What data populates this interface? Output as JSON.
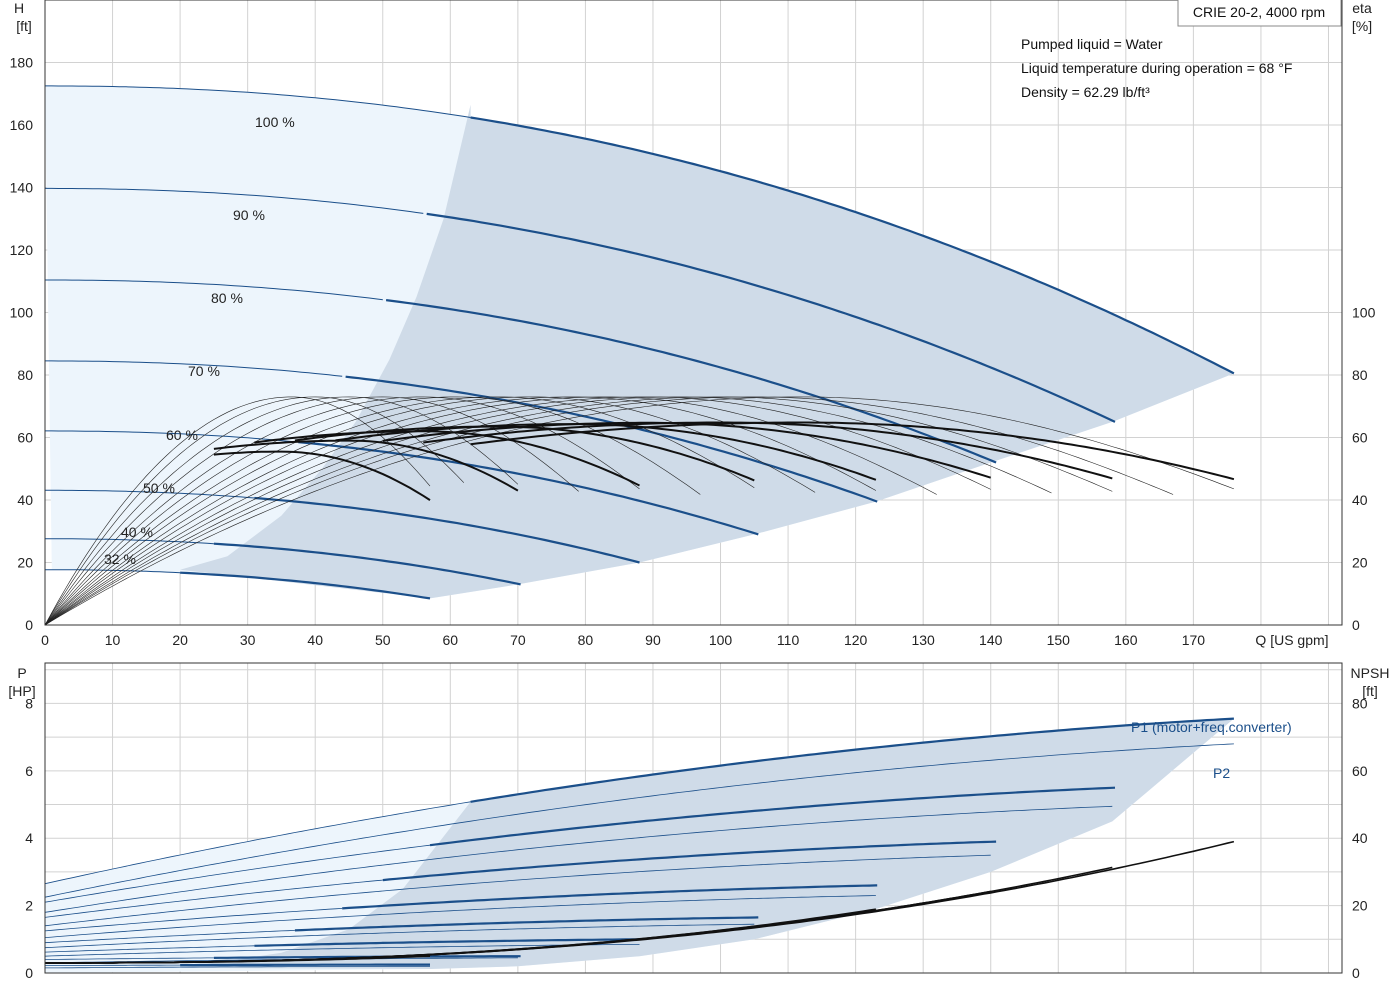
{
  "header": {
    "model": "CRIE 20-2, 4000 rpm",
    "liquid": "Pumped liquid = Water",
    "temperature": "Liquid temperature during operation = 68 °F",
    "density": "Density = 62.29 lb/ft³"
  },
  "colors": {
    "blue_curve": "#1b4f8a",
    "black_curve": "#111111",
    "op_area": "#cfdbe8",
    "light_area": "#edf5fc",
    "grid": "#d2d2d2"
  },
  "chart_data": [
    {
      "type": "line",
      "name": "head-efficiency",
      "left_axis": {
        "unit_line1": "H",
        "unit_line2": "[ft]",
        "ticks": [
          "0",
          "20",
          "40",
          "60",
          "80",
          "100",
          "120",
          "140",
          "160",
          "180"
        ],
        "ylim": [
          0,
          200
        ]
      },
      "right_axis": {
        "unit_line1": "eta",
        "unit_line2": "[%]",
        "ticks": [
          "0",
          "20",
          "40",
          "60",
          "80",
          "100"
        ],
        "ylim": [
          0,
          200
        ]
      },
      "x_axis": {
        "label": "Q [US gpm]",
        "ticks": [
          "0",
          "10",
          "20",
          "30",
          "40",
          "50",
          "60",
          "70",
          "80",
          "90",
          "100",
          "110",
          "120",
          "130",
          "140",
          "150",
          "160",
          "170"
        ],
        "xlim": [
          0,
          192
        ]
      },
      "head_curves": [
        {
          "speed": "100 %",
          "qmax": 176.0,
          "h0": 172.5,
          "k": 0.003,
          "n": 2.15
        },
        {
          "speed": "90 %",
          "qmax": 158.4,
          "h0": 139.7,
          "k": 0.003,
          "n": 2.15
        },
        {
          "speed": "80 %",
          "qmax": 140.8,
          "h0": 110.4,
          "k": 0.003,
          "n": 2.15
        },
        {
          "speed": "70 %",
          "qmax": 123.2,
          "h0": 84.5,
          "k": 0.003,
          "n": 2.15
        },
        {
          "speed": "60 %",
          "qmax": 105.6,
          "h0": 62.1,
          "k": 0.003,
          "n": 2.15
        },
        {
          "speed": "50 %",
          "qmax": 88.0,
          "h0": 43.1,
          "k": 0.003,
          "n": 2.15
        },
        {
          "speed": "40 %",
          "qmax": 70.4,
          "h0": 27.6,
          "k": 0.003,
          "n": 2.15
        },
        {
          "speed": "32 %",
          "qmax": 57.0,
          "h0": 17.7,
          "k": 0.003,
          "n": 2.15
        }
      ],
      "eta_bold": [
        {
          "qmin": 25,
          "qmax": 57.0,
          "qpeak": 35,
          "eta_max": 55.5
        },
        {
          "qmin": 25,
          "qmax": 70.4,
          "qpeak": 45,
          "eta_max": 59.0
        },
        {
          "qmin": 31,
          "qmax": 88.0,
          "qpeak": 56,
          "eta_max": 62.0
        },
        {
          "qmin": 37,
          "qmax": 105.6,
          "qpeak": 67,
          "eta_max": 63.5
        },
        {
          "qmin": 43,
          "qmax": 123.2,
          "qpeak": 78,
          "eta_max": 64.3
        },
        {
          "qmin": 50,
          "qmax": 140.8,
          "qpeak": 89,
          "eta_max": 64.7
        },
        {
          "qmin": 56,
          "qmax": 158.4,
          "qpeak": 100,
          "eta_max": 64.8
        },
        {
          "qmin": 63,
          "qmax": 176.0,
          "qpeak": 112,
          "eta_max": 64.8
        }
      ],
      "eta_thin": [
        {
          "qmax": 57.0,
          "qpeak": 36.5,
          "eta_max": 73.0
        },
        {
          "qmax": 62.0,
          "qpeak": 40.0,
          "eta_max": 73.0
        },
        {
          "qmax": 70.4,
          "qpeak": 45.0,
          "eta_max": 73.0
        },
        {
          "qmax": 79.0,
          "qpeak": 50.0,
          "eta_max": 73.0
        },
        {
          "qmax": 88.0,
          "qpeak": 56.0,
          "eta_max": 73.0
        },
        {
          "qmax": 97.0,
          "qpeak": 61.0,
          "eta_max": 73.0
        },
        {
          "qmax": 105.6,
          "qpeak": 67.0,
          "eta_max": 73.0
        },
        {
          "qmax": 114.0,
          "qpeak": 72.0,
          "eta_max": 73.0
        },
        {
          "qmax": 123.2,
          "qpeak": 78.0,
          "eta_max": 73.0
        },
        {
          "qmax": 132.0,
          "qpeak": 83.0,
          "eta_max": 73.0
        },
        {
          "qmax": 140.8,
          "qpeak": 89.0,
          "eta_max": 73.0
        },
        {
          "qmax": 149.0,
          "qpeak": 94.0,
          "eta_max": 73.0
        },
        {
          "qmax": 158.4,
          "qpeak": 100.0,
          "eta_max": 73.0
        },
        {
          "qmax": 167.0,
          "qpeak": 105.0,
          "eta_max": 73.0
        },
        {
          "qmax": 176.0,
          "qpeak": 112.0,
          "eta_max": 73.0
        }
      ],
      "op_area": {
        "upper": [
          [
            63,
            166.5
          ],
          [
            176,
            80.5
          ]
        ],
        "right_edge": [
          [
            176,
            80.5
          ],
          [
            176,
            80.5
          ]
        ],
        "lower": [
          [
            176,
            80.5
          ],
          [
            158,
            65
          ],
          [
            140,
            52
          ],
          [
            123,
            39.5
          ],
          [
            105,
            29
          ],
          [
            88,
            20
          ],
          [
            70,
            13
          ],
          [
            57,
            8.5
          ]
        ],
        "left_edge": [
          [
            57,
            8.5
          ],
          [
            20,
            17.7
          ],
          [
            27,
            22
          ],
          [
            35,
            35
          ],
          [
            41,
            50
          ],
          [
            46,
            65
          ],
          [
            51,
            85
          ],
          [
            55,
            105
          ],
          [
            59,
            130
          ],
          [
            63,
            166.5
          ]
        ]
      }
    },
    {
      "type": "line",
      "name": "power-npsh",
      "left_axis": {
        "unit_line1": "P",
        "unit_line2": "[HP]",
        "ticks": [
          "0",
          "2",
          "4",
          "6",
          "8"
        ],
        "ylim": [
          0,
          9.2
        ]
      },
      "right_axis": {
        "unit_line1": "NPSH",
        "unit_line2": "[ft]",
        "ticks": [
          "0",
          "20",
          "40",
          "60",
          "80"
        ],
        "ylim": [
          0,
          92
        ]
      },
      "x_axis": {
        "label": "",
        "xlim": [
          0,
          192
        ]
      },
      "series_labels": {
        "p1": "P1 (motor+freq.converter)",
        "p2": "P2"
      },
      "p1_curves": [
        {
          "qmax": 176.0,
          "p0": 2.65,
          "pend": 7.55,
          "qb": 63
        },
        {
          "qmax": 158.4,
          "p0": 2.1,
          "pend": 5.5,
          "qb": 57
        },
        {
          "qmax": 140.8,
          "p0": 1.65,
          "pend": 3.9,
          "qb": 50
        },
        {
          "qmax": 123.2,
          "p0": 1.25,
          "pend": 2.6,
          "qb": 44
        },
        {
          "qmax": 105.6,
          "p0": 0.9,
          "pend": 1.65,
          "qb": 37
        },
        {
          "qmax": 88.0,
          "p0": 0.62,
          "pend": 1.0,
          "qb": 31
        },
        {
          "qmax": 70.4,
          "p0": 0.4,
          "pend": 0.5,
          "qb": 25
        },
        {
          "qmax": 57.0,
          "p0": 0.22,
          "pend": 0.25,
          "qb": 20
        }
      ],
      "p2_curves": [
        {
          "qmax": 176.0,
          "p0": 2.25,
          "pend": 6.8
        },
        {
          "qmax": 158.4,
          "p0": 1.8,
          "pend": 4.95
        },
        {
          "qmax": 140.8,
          "p0": 1.4,
          "pend": 3.5
        },
        {
          "qmax": 123.2,
          "p0": 1.05,
          "pend": 2.3
        },
        {
          "qmax": 105.6,
          "p0": 0.75,
          "pend": 1.45
        },
        {
          "qmax": 88.0,
          "p0": 0.5,
          "pend": 0.85
        },
        {
          "qmax": 70.4,
          "p0": 0.3,
          "pend": 0.45
        },
        {
          "qmax": 57.0,
          "p0": 0.15,
          "pend": 0.2
        }
      ],
      "npsh_curves": [
        {
          "qmax": 176.0,
          "nend": 39.0
        },
        {
          "qmax": 158.4,
          "nend": 31.5
        },
        {
          "qmax": 140.8,
          "nend": 24.5
        },
        {
          "qmax": 123.2,
          "nend": 19.0
        },
        {
          "qmax": 105.6,
          "nend": 14.0
        },
        {
          "qmax": 88.0,
          "nend": 10.0
        },
        {
          "qmax": 70.4,
          "nend": 7.0
        },
        {
          "qmax": 57.0,
          "nend": 5.0
        }
      ]
    }
  ]
}
